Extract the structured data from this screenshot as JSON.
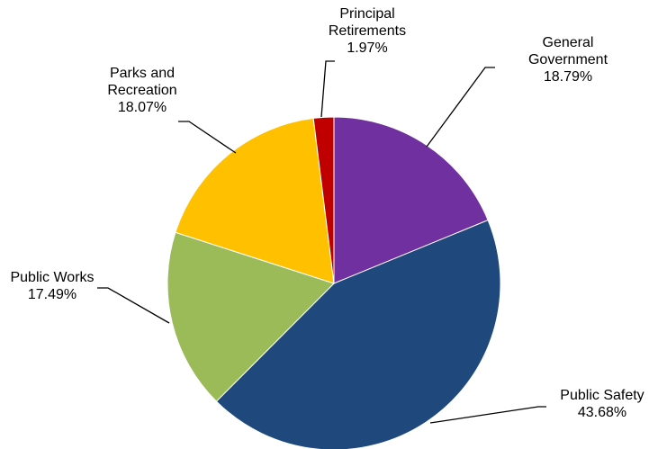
{
  "chart_data": {
    "type": "pie",
    "title": "",
    "start_angle_deg": 0,
    "direction": "clockwise",
    "legend": "none",
    "slices": [
      {
        "name": "General Government",
        "label_lines": [
          "General",
          "Government"
        ],
        "percent_text": "18.79%",
        "value": 18.79,
        "color": "#7030A0"
      },
      {
        "name": "Public Safety",
        "label_lines": [
          "Public Safety"
        ],
        "percent_text": "43.68%",
        "value": 43.68,
        "color": "#1F497D"
      },
      {
        "name": "Public Works",
        "label_lines": [
          "Public Works"
        ],
        "percent_text": "17.49%",
        "value": 17.49,
        "color": "#9BBB59"
      },
      {
        "name": "Parks and Recreation",
        "label_lines": [
          "Parks and",
          "Recreation"
        ],
        "percent_text": "18.07%",
        "value": 18.07,
        "color": "#FFC000"
      },
      {
        "name": "Principal Retirements",
        "label_lines": [
          "Principal",
          "Retirements"
        ],
        "percent_text": "1.97%",
        "value": 1.97,
        "color": "#C00000"
      }
    ]
  }
}
